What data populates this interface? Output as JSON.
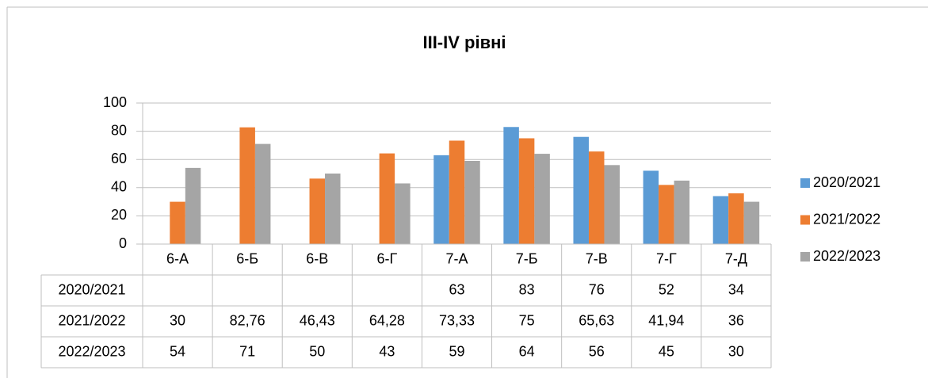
{
  "chart_data": {
    "type": "bar",
    "title": "III-IV рівні",
    "categories": [
      "6-А",
      "6-Б",
      "6-В",
      "6-Г",
      "7-А",
      "7-Б",
      "7-В",
      "7-Г",
      "7-Д"
    ],
    "series": [
      {
        "name": "2020/2021",
        "color": "#5b9bd5",
        "values": [
          null,
          null,
          null,
          null,
          63,
          83,
          76,
          52,
          34
        ]
      },
      {
        "name": "2021/2022",
        "color": "#ed7d31",
        "values": [
          30,
          82.76,
          46.43,
          64.28,
          73.33,
          75,
          65.63,
          41.94,
          36
        ],
        "value_labels": [
          "30",
          "82,76",
          "46,43",
          "64,28",
          "73,33",
          "75",
          "65,63",
          "41,94",
          "36"
        ]
      },
      {
        "name": "2022/2023",
        "color": "#a5a5a5",
        "values": [
          54,
          71,
          50,
          43,
          59,
          64,
          56,
          45,
          30
        ]
      }
    ],
    "ylim": [
      0,
      100
    ],
    "yticks": [
      0,
      20,
      40,
      60,
      80,
      100
    ],
    "grid": true,
    "legend": "right",
    "data_table": true
  }
}
